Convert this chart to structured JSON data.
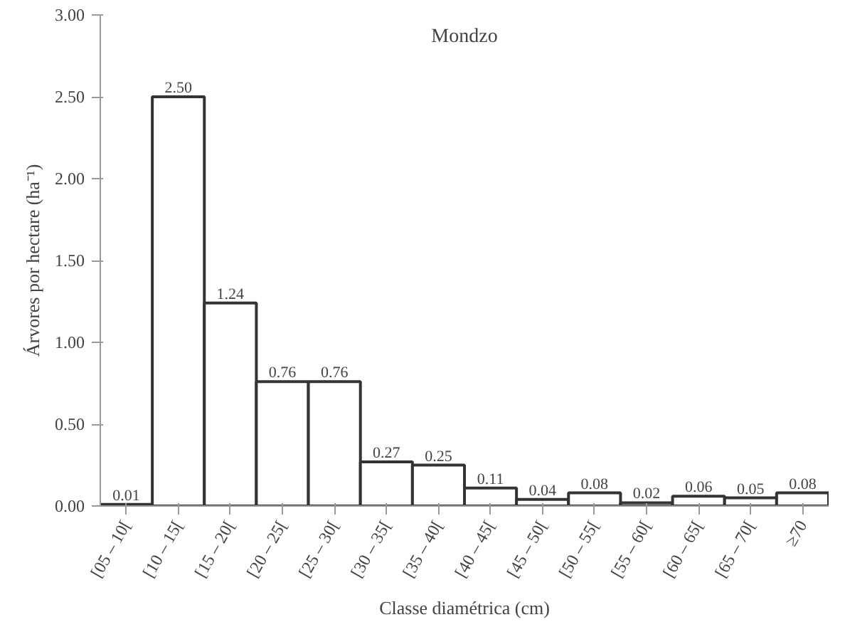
{
  "chart_data": {
    "type": "bar",
    "title": "Mondzo",
    "xlabel": "Classe diamétrica (cm)",
    "ylabel": "Árvores por hectare (ha⁻¹)",
    "categories": [
      "[05 – 10[",
      "[10 – 15[",
      "[15 – 20[",
      "[20 – 25[",
      "[25 – 30[",
      "[30 – 35[",
      "[35 – 40[",
      "[40 – 45[",
      "[45 – 50[",
      "[50 – 55[",
      "[55 – 60[",
      "[60 – 65[",
      "[65 – 70[",
      "≥70"
    ],
    "values": [
      0.01,
      2.5,
      1.24,
      0.76,
      0.76,
      0.27,
      0.25,
      0.11,
      0.04,
      0.08,
      0.02,
      0.06,
      0.05,
      0.08
    ],
    "color": "#ffffff",
    "ylim": [
      0,
      3
    ],
    "yticks": [
      {
        "value": 0,
        "label": "0.00"
      },
      {
        "value": 0.5,
        "label": "0.50"
      },
      {
        "value": 1,
        "label": "1.00"
      },
      {
        "value": 1.5,
        "label": "1.50"
      },
      {
        "value": 2,
        "label": "2.00"
      },
      {
        "value": 2.5,
        "label": "2.50"
      },
      {
        "value": 3,
        "label": "3.00"
      }
    ],
    "value_labels": [
      "0.01",
      "2.50",
      "1.24",
      "0.76",
      "0.76",
      "0.27",
      "0.25",
      "0.11",
      "0.04",
      "0.08",
      "0.02",
      "0.06",
      "0.05",
      "0.08"
    ],
    "grid": false
  }
}
